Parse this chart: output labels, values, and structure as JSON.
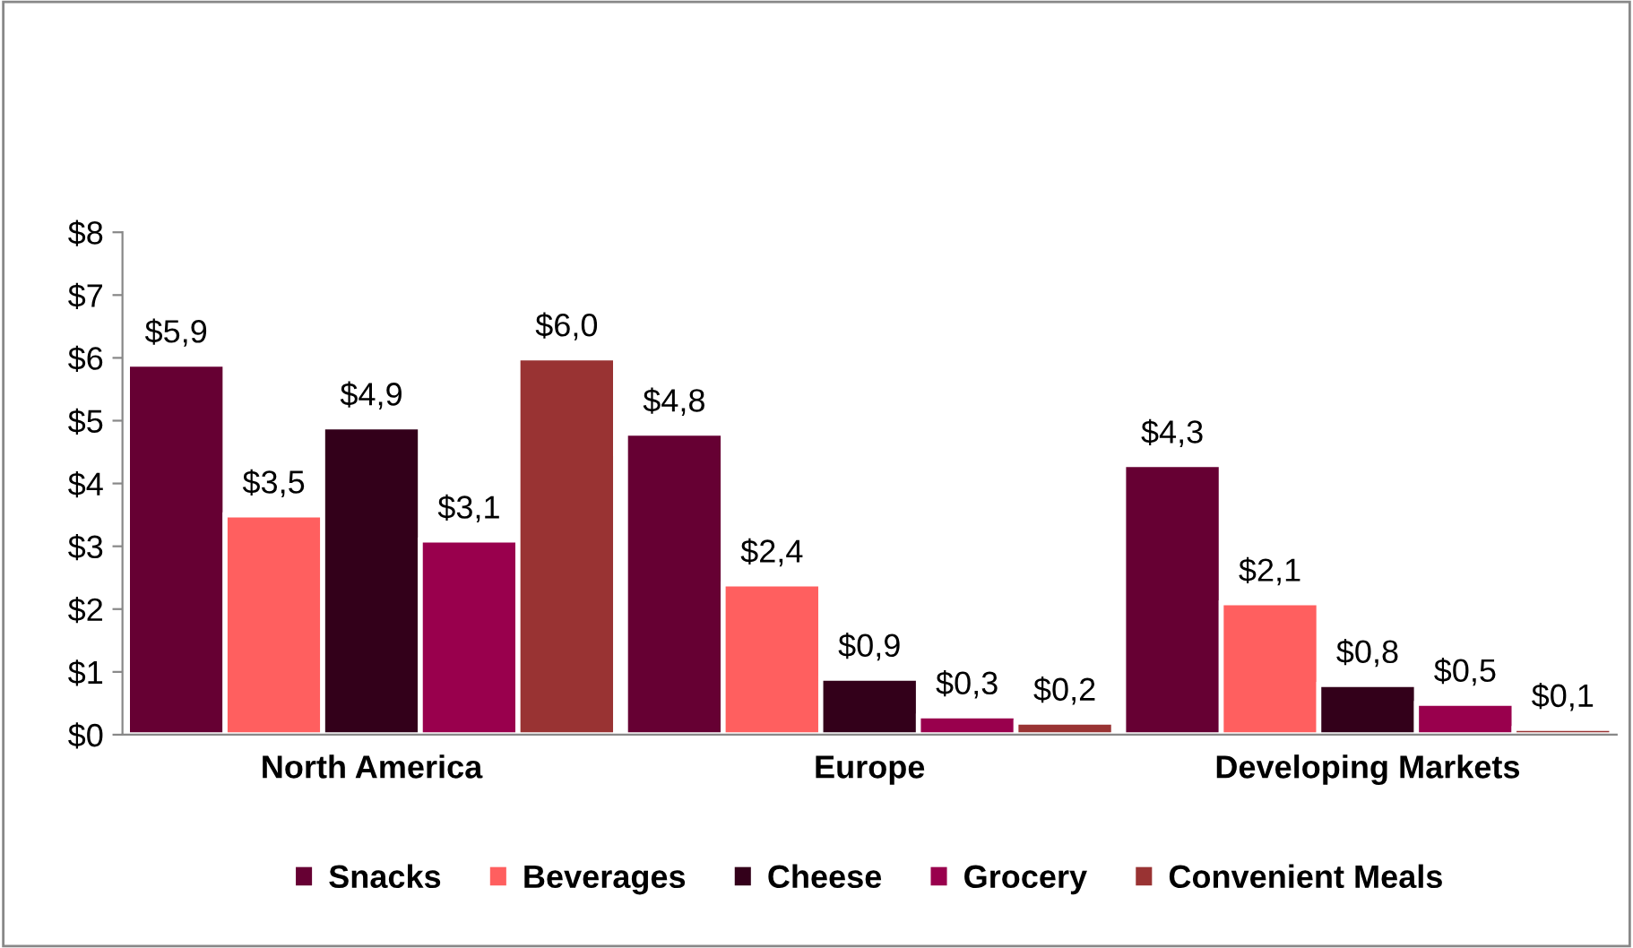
{
  "chart_data": {
    "type": "bar",
    "categories": [
      "North America",
      "Europe",
      "Developing Markets"
    ],
    "series": [
      {
        "name": "Snacks",
        "color": "#660033",
        "values": [
          5.9,
          4.8,
          4.3
        ],
        "value_labels": [
          "$5,9",
          "$4,8",
          "$4,3"
        ]
      },
      {
        "name": "Beverages",
        "color": "#ff5f5f",
        "values": [
          3.5,
          2.4,
          2.1
        ],
        "value_labels": [
          "$3,5",
          "$2,4",
          "$2,1"
        ]
      },
      {
        "name": "Cheese",
        "color": "#33001a",
        "values": [
          4.9,
          0.9,
          0.8
        ],
        "value_labels": [
          "$4,9",
          "$0,9",
          "$0,8"
        ]
      },
      {
        "name": "Grocery",
        "color": "#99004d",
        "values": [
          3.1,
          0.3,
          0.5
        ],
        "value_labels": [
          "$3,1",
          "$0,3",
          "$0,5"
        ]
      },
      {
        "name": "Convenient Meals",
        "color": "#993333",
        "values": [
          6.0,
          0.2,
          0.1
        ],
        "value_labels": [
          "$6,0",
          "$0,2",
          "$0,1"
        ]
      }
    ],
    "ylim": [
      0,
      8
    ],
    "yticks": [
      {
        "value": 0,
        "label": "$0"
      },
      {
        "value": 1,
        "label": "$1"
      },
      {
        "value": 2,
        "label": "$2"
      },
      {
        "value": 3,
        "label": "$3"
      },
      {
        "value": 4,
        "label": "$4"
      },
      {
        "value": 5,
        "label": "$5"
      },
      {
        "value": 6,
        "label": "$6"
      },
      {
        "value": 7,
        "label": "$7"
      },
      {
        "value": 8,
        "label": "$8"
      }
    ],
    "grid": false,
    "legend": "bottom"
  }
}
